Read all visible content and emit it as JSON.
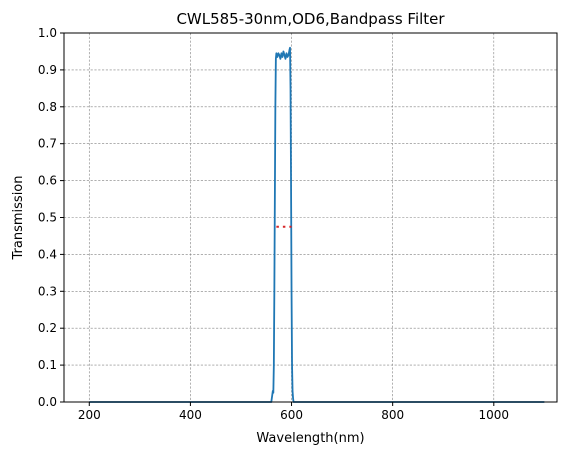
{
  "chart_data": {
    "type": "line",
    "title": "CWL585-30nm,OD6,Bandpass Filter",
    "xlabel": "Wavelength(nm)",
    "ylabel": "Transmission",
    "xlim": [
      150,
      1125
    ],
    "ylim": [
      0,
      1.0
    ],
    "xticks": [
      200,
      400,
      600,
      800,
      1000
    ],
    "yticks": [
      0.0,
      0.1,
      0.2,
      0.3,
      0.4,
      0.5,
      0.6,
      0.7,
      0.8,
      0.9,
      1.0
    ],
    "grid": true,
    "series": [
      {
        "color": "#1f77b4",
        "x": [
          200,
          560,
          561,
          562,
          563,
          564,
          565,
          566,
          567,
          568,
          569,
          570,
          571,
          572,
          574,
          576,
          578,
          580,
          582,
          584,
          586,
          588,
          590,
          592,
          594,
          596,
          597,
          598,
          599,
          600,
          601,
          602,
          603,
          604,
          605,
          1100
        ],
        "y": [
          0.0,
          0.0,
          0.01,
          0.02,
          0.03,
          0.025,
          0.1,
          0.3,
          0.55,
          0.8,
          0.93,
          0.945,
          0.94,
          0.935,
          0.945,
          0.94,
          0.93,
          0.945,
          0.935,
          0.95,
          0.94,
          0.93,
          0.945,
          0.935,
          0.94,
          0.955,
          0.96,
          0.85,
          0.6,
          0.3,
          0.1,
          0.03,
          0.01,
          0.0,
          0.0,
          0.0
        ]
      }
    ],
    "markers": [
      {
        "type": "dashed-segment",
        "color": "#d62728",
        "x": [
          570,
          600
        ],
        "y": 0.475
      }
    ]
  }
}
